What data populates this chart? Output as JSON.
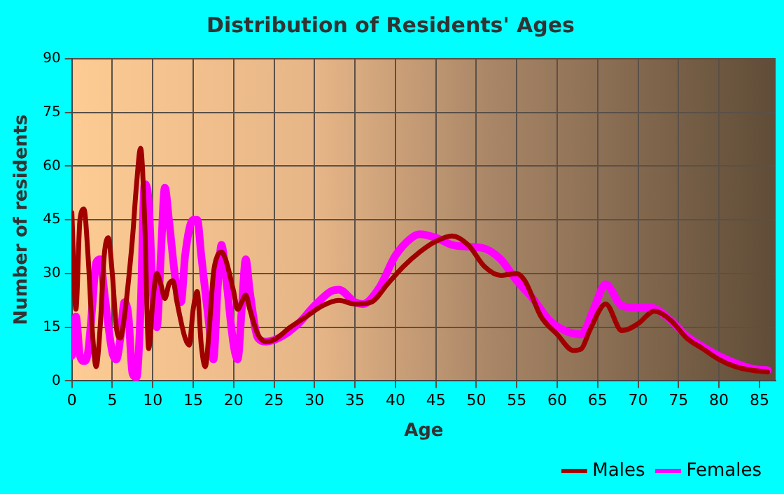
{
  "chart_data": {
    "type": "line",
    "title": "Distribution of Residents' Ages",
    "xlabel": "Age",
    "ylabel": "Number of residents",
    "xlim": [
      0,
      87
    ],
    "xticks": [
      0,
      5,
      10,
      15,
      20,
      25,
      30,
      35,
      40,
      45,
      50,
      55,
      60,
      65,
      70,
      75,
      80,
      85
    ],
    "ylim": [
      0,
      90
    ],
    "yticks": [
      0,
      15,
      30,
      45,
      60,
      75,
      90
    ],
    "grid": true,
    "legend": "bottom right",
    "marker": "none",
    "line_style": "solid",
    "series": [
      {
        "name": "Males",
        "color": "#a00000",
        "x": [
          0,
          0.5,
          1,
          1.5,
          2,
          2.5,
          3,
          3.5,
          4,
          4.5,
          5,
          5.5,
          6,
          6.5,
          7,
          7.5,
          8,
          8.5,
          9,
          9.5,
          10,
          10.5,
          11,
          11.5,
          12,
          12.5,
          13,
          14,
          14.5,
          15,
          15.5,
          16,
          16.5,
          17,
          17.5,
          18,
          18.5,
          19,
          20,
          20.5,
          21,
          21.5,
          22,
          23,
          24,
          25,
          27,
          29,
          31,
          33,
          35,
          37,
          39,
          41,
          43,
          45,
          47,
          49,
          51,
          53,
          55,
          56,
          58,
          60,
          62,
          63,
          64,
          66,
          68,
          70,
          72,
          74,
          76,
          78,
          80,
          82,
          84,
          86
        ],
        "values": [
          47,
          20,
          45,
          48,
          35,
          15,
          4,
          15,
          35,
          40,
          30,
          15,
          12,
          18,
          28,
          40,
          55,
          65,
          45,
          9,
          22,
          30,
          27,
          23,
          27,
          28,
          22,
          12,
          10,
          20,
          25,
          10,
          4,
          15,
          30,
          35,
          36,
          34,
          25,
          20,
          22,
          24,
          20,
          13,
          11,
          11.5,
          15,
          18,
          21,
          22.5,
          21.5,
          22,
          27,
          32,
          36,
          39,
          40.5,
          38,
          32,
          29.5,
          30,
          28,
          18,
          13,
          8.5,
          9,
          14,
          21.5,
          14,
          16,
          19.5,
          17,
          12,
          9,
          6,
          4,
          3,
          2.5
        ]
      },
      {
        "name": "Females",
        "color": "#ff00ff",
        "x": [
          0,
          0.5,
          1,
          1.5,
          2,
          2.5,
          3,
          3.5,
          4,
          5,
          5.5,
          6,
          6.5,
          7,
          7.5,
          8,
          8.5,
          9,
          9.5,
          10,
          10.5,
          11,
          11.5,
          12,
          13,
          13.5,
          14,
          15,
          15.5,
          16,
          17,
          17.5,
          18,
          18.5,
          19,
          20,
          20.5,
          21,
          21.5,
          22,
          23,
          24,
          26,
          28,
          30,
          32,
          33,
          35,
          36,
          38,
          40,
          42,
          43,
          45,
          47,
          49,
          51,
          53,
          55,
          57,
          59,
          61,
          63,
          64.5,
          66,
          68,
          70,
          71.5,
          74,
          76,
          78,
          80,
          82,
          84,
          86
        ],
        "values": [
          7,
          18,
          7,
          5.5,
          8,
          20,
          33,
          34,
          25,
          8,
          6,
          12,
          22,
          18,
          2,
          1,
          20,
          55,
          50,
          25,
          15,
          35,
          54,
          45,
          25,
          22,
          35,
          45,
          45,
          35,
          15,
          6,
          25,
          38,
          30,
          10,
          6,
          20,
          34,
          25,
          12,
          11,
          12.5,
          16,
          21,
          25,
          25.5,
          22,
          21.5,
          26,
          35,
          40,
          41,
          40,
          38,
          37.5,
          37,
          34,
          28,
          23,
          17,
          14,
          13,
          20,
          27,
          21,
          20.5,
          20.5,
          17,
          12.5,
          9.5,
          7,
          5,
          3.5,
          3
        ]
      }
    ]
  }
}
